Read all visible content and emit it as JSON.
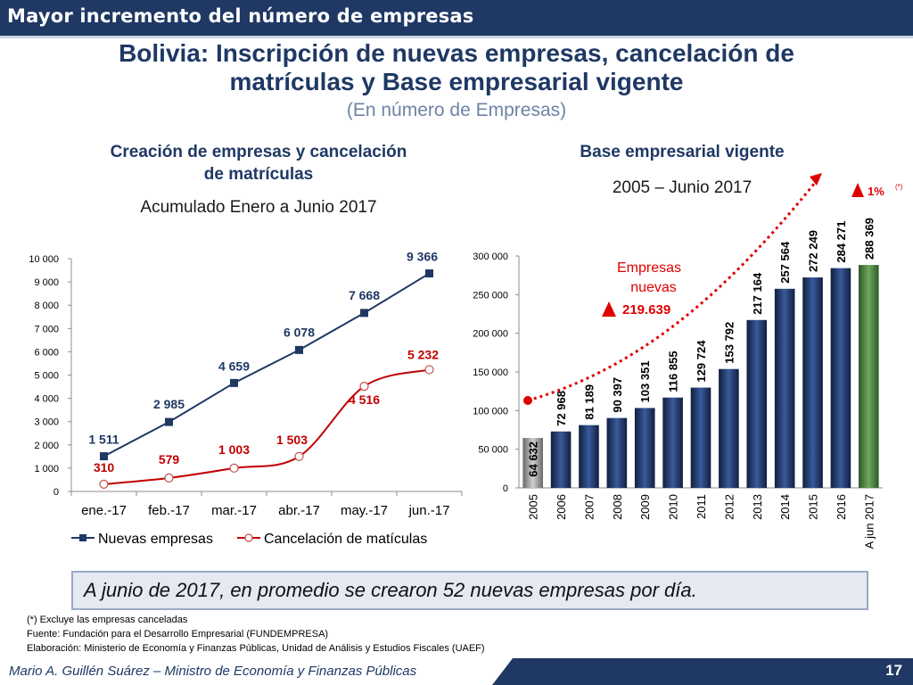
{
  "header": {
    "section_title": "Mayor incremento del número de empresas"
  },
  "title": {
    "line1": "Bolivia: Inscripción de nuevas empresas, cancelación de",
    "line2": "matrículas y Base empresarial vigente",
    "subtitle": "(En número de Empresas)"
  },
  "left_panel": {
    "title_line1": "Creación de empresas y cancelación",
    "title_line2": "de matrículas",
    "subtitle": "Acumulado Enero a Junio 2017"
  },
  "right_panel": {
    "title": "Base empresarial vigente",
    "subtitle": "2005 – Junio 2017"
  },
  "colors": {
    "navy": "#1f3864",
    "red": "#c00000",
    "green": "#3f7c36",
    "gray": "#8c8c8c"
  },
  "chart_data": [
    {
      "type": "line",
      "categories": [
        "ene.-17",
        "feb.-17",
        "mar.-17",
        "abr.-17",
        "may.-17",
        "jun.-17"
      ],
      "series": [
        {
          "name": "Nuevas empresas",
          "values": [
            1511,
            2985,
            4659,
            6078,
            7668,
            9366
          ],
          "labels": [
            "1 511",
            "2 985",
            "4 659",
            "6 078",
            "7 668",
            "9 366"
          ]
        },
        {
          "name": "Cancelación de matículas",
          "values": [
            310,
            579,
            1003,
            1503,
            4516,
            5232
          ],
          "labels": [
            "310",
            "579",
            "1 003",
            "1 503",
            "4 516",
            "5 232"
          ]
        }
      ],
      "ylim": [
        0,
        10000
      ],
      "yticks": [
        0,
        1000,
        2000,
        3000,
        4000,
        5000,
        6000,
        7000,
        8000,
        9000,
        10000
      ],
      "ytick_labels": [
        "0",
        "1 000",
        "2 000",
        "3 000",
        "4 000",
        "5 000",
        "6 000",
        "7 000",
        "8 000",
        "9 000",
        "10 000"
      ],
      "grid": false,
      "legend": "bottom"
    },
    {
      "type": "bar",
      "categories": [
        "2005",
        "2006",
        "2007",
        "2008",
        "2009",
        "2010",
        "2011",
        "2012",
        "2013",
        "2014",
        "2015",
        "2016",
        "A jun 2017"
      ],
      "values": [
        64632,
        72968,
        81189,
        90397,
        103351,
        116855,
        129724,
        153792,
        217164,
        257564,
        272249,
        284271,
        288369
      ],
      "labels": [
        "64 632",
        "72 968",
        "81 189",
        "90 397",
        "103 351",
        "116 855",
        "129 724",
        "153 792",
        "217 164",
        "257 564",
        "272 249",
        "284 271",
        "288 369"
      ],
      "ylim": [
        0,
        300000
      ],
      "yticks": [
        0,
        50000,
        100000,
        150000,
        200000,
        250000,
        300000
      ],
      "ytick_labels": [
        "0",
        "50 000",
        "100 000",
        "150 000",
        "200 000",
        "250 000",
        "300 000"
      ],
      "grid": false,
      "annotations": {
        "new_label_line1": "Empresas",
        "new_label_line2": "nuevas",
        "new_value": "219.639",
        "growth_value": "1%",
        "growth_mark": "(*)"
      }
    }
  ],
  "note": {
    "text": "A junio de 2017, en promedio se crearon 52 nuevas empresas por día."
  },
  "footnotes": {
    "note": "(*) Excluye las empresas canceladas",
    "source": "Fuente: Fundación para el Desarrollo Empresarial (FUNDEMPRESA)",
    "elaboration": "Elaboración: Ministerio de Economía y Finanzas Públicas, Unidad de Análisis y Estudios Fiscales (UAEF)"
  },
  "footer": {
    "author": "Mario A. Guillén Suárez – Ministro de Economía y Finanzas Públicas",
    "page": "17"
  }
}
